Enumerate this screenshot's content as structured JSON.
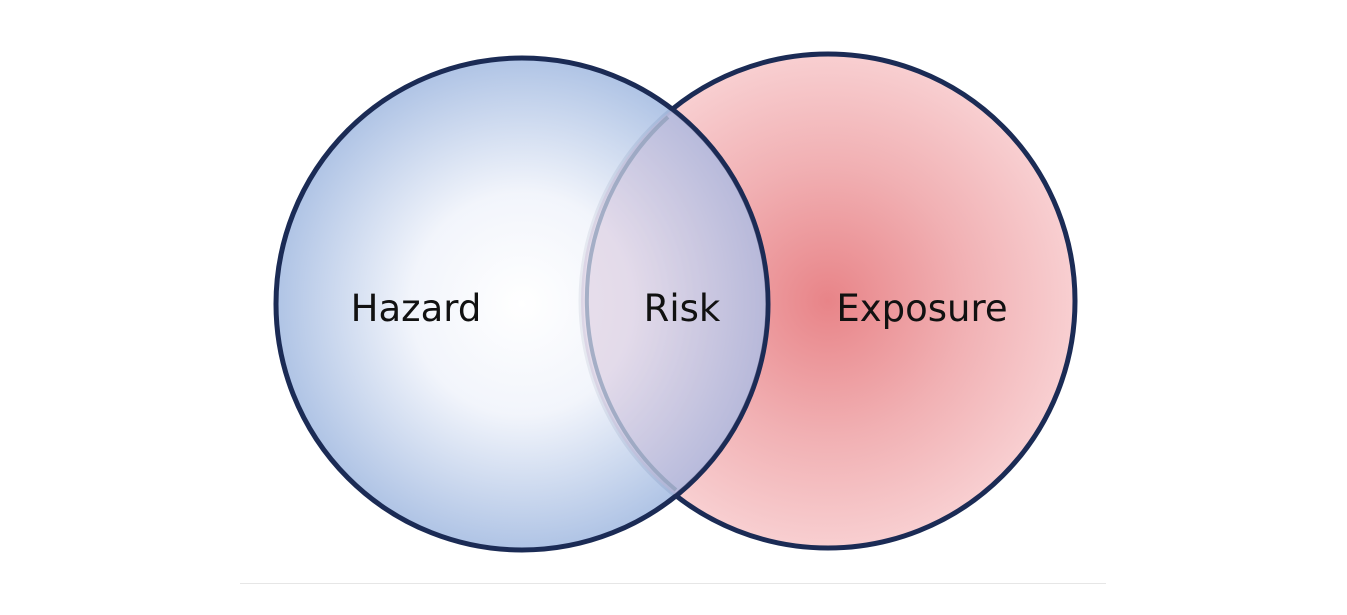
{
  "diagram": {
    "type": "venn",
    "sets": [
      {
        "label": "Hazard",
        "fill_center": "#ffffff",
        "fill_edge": "#a9bfe3",
        "stroke": "#1b2b55"
      },
      {
        "label": "Exposure",
        "fill_center": "#e98a8e",
        "fill_edge": "#f7c8ca",
        "stroke": "#1b2b55"
      }
    ],
    "intersection": {
      "label": "Risk"
    }
  }
}
